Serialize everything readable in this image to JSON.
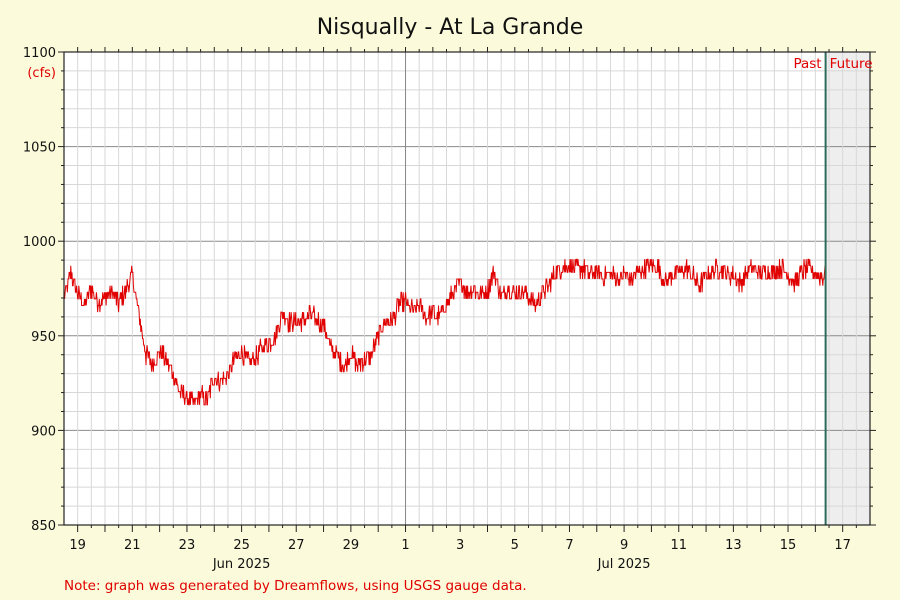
{
  "chart_data": {
    "type": "line",
    "title": "Nisqually - At La Grande",
    "ylabel": "(cfs)",
    "ylim": [
      850,
      1100
    ],
    "yticks": [
      850,
      900,
      950,
      1000,
      1050,
      1100
    ],
    "xlim": [
      "2025-06-18T12:00",
      "2025-07-18T00:00"
    ],
    "x_ticks": [
      {
        "date": "2025-06-19",
        "label": "19"
      },
      {
        "date": "2025-06-21",
        "label": "21"
      },
      {
        "date": "2025-06-23",
        "label": "23"
      },
      {
        "date": "2025-06-25",
        "label": "25"
      },
      {
        "date": "2025-06-27",
        "label": "27"
      },
      {
        "date": "2025-06-29",
        "label": "29"
      },
      {
        "date": "2025-07-01",
        "label": "1"
      },
      {
        "date": "2025-07-03",
        "label": "3"
      },
      {
        "date": "2025-07-05",
        "label": "5"
      },
      {
        "date": "2025-07-07",
        "label": "7"
      },
      {
        "date": "2025-07-09",
        "label": "9"
      },
      {
        "date": "2025-07-11",
        "label": "11"
      },
      {
        "date": "2025-07-13",
        "label": "13"
      },
      {
        "date": "2025-07-15",
        "label": "15"
      },
      {
        "date": "2025-07-17",
        "label": "17"
      }
    ],
    "month_labels": [
      {
        "date": "2025-06-25",
        "label": "Jun 2025"
      },
      {
        "date": "2025-07-09",
        "label": "Jul 2025"
      }
    ],
    "month_boundary": "2025-07-01",
    "now": "2025-07-16T09:00",
    "past_label": "Past",
    "future_label": "Future",
    "grid": true,
    "series": [
      {
        "color": "#e00000",
        "points": [
          [
            "2025-06-18T12:00",
            970
          ],
          [
            "2025-06-18T18:00",
            983
          ],
          [
            "2025-06-19T00:00",
            972
          ],
          [
            "2025-06-19T06:00",
            966
          ],
          [
            "2025-06-19T12:00",
            975
          ],
          [
            "2025-06-19T18:00",
            968
          ],
          [
            "2025-06-20T00:00",
            970
          ],
          [
            "2025-06-20T06:00",
            974
          ],
          [
            "2025-06-20T12:00",
            967
          ],
          [
            "2025-06-20T18:00",
            973
          ],
          [
            "2025-06-21T00:00",
            982
          ],
          [
            "2025-06-21T06:00",
            960
          ],
          [
            "2025-06-21T12:00",
            940
          ],
          [
            "2025-06-21T18:00",
            935
          ],
          [
            "2025-06-22T00:00",
            942
          ],
          [
            "2025-06-22T06:00",
            937
          ],
          [
            "2025-06-22T12:00",
            930
          ],
          [
            "2025-06-22T18:00",
            920
          ],
          [
            "2025-06-23T00:00",
            917
          ],
          [
            "2025-06-23T06:00",
            914
          ],
          [
            "2025-06-23T12:00",
            918
          ],
          [
            "2025-06-23T18:00",
            917
          ],
          [
            "2025-06-24T00:00",
            928
          ],
          [
            "2025-06-24T06:00",
            926
          ],
          [
            "2025-06-24T12:00",
            929
          ],
          [
            "2025-06-24T18:00",
            938
          ],
          [
            "2025-06-25T00:00",
            942
          ],
          [
            "2025-06-25T06:00",
            936
          ],
          [
            "2025-06-25T12:00",
            938
          ],
          [
            "2025-06-25T18:00",
            944
          ],
          [
            "2025-06-26T00:00",
            946
          ],
          [
            "2025-06-26T06:00",
            950
          ],
          [
            "2025-06-26T12:00",
            962
          ],
          [
            "2025-06-26T18:00",
            957
          ],
          [
            "2025-06-27T00:00",
            958
          ],
          [
            "2025-06-27T06:00",
            957
          ],
          [
            "2025-06-27T12:00",
            962
          ],
          [
            "2025-06-27T18:00",
            958
          ],
          [
            "2025-06-28T00:00",
            956
          ],
          [
            "2025-06-28T06:00",
            944
          ],
          [
            "2025-06-28T12:00",
            940
          ],
          [
            "2025-06-28T18:00",
            933
          ],
          [
            "2025-06-29T00:00",
            941
          ],
          [
            "2025-06-29T06:00",
            934
          ],
          [
            "2025-06-29T12:00",
            938
          ],
          [
            "2025-06-29T18:00",
            940
          ],
          [
            "2025-06-30T00:00",
            950
          ],
          [
            "2025-06-30T06:00",
            958
          ],
          [
            "2025-06-30T12:00",
            958
          ],
          [
            "2025-06-30T18:00",
            966
          ],
          [
            "2025-07-01T00:00",
            968
          ],
          [
            "2025-07-01T06:00",
            963
          ],
          [
            "2025-07-01T12:00",
            965
          ],
          [
            "2025-07-01T18:00",
            960
          ],
          [
            "2025-07-02T00:00",
            962
          ],
          [
            "2025-07-02T06:00",
            960
          ],
          [
            "2025-07-02T12:00",
            967
          ],
          [
            "2025-07-02T18:00",
            972
          ],
          [
            "2025-07-03T00:00",
            978
          ],
          [
            "2025-07-03T06:00",
            973
          ],
          [
            "2025-07-03T12:00",
            975
          ],
          [
            "2025-07-03T18:00",
            972
          ],
          [
            "2025-07-04T00:00",
            974
          ],
          [
            "2025-07-04T06:00",
            983
          ],
          [
            "2025-07-04T12:00",
            970
          ],
          [
            "2025-07-04T18:00",
            976
          ],
          [
            "2025-07-05T00:00",
            972
          ],
          [
            "2025-07-05T06:00",
            974
          ],
          [
            "2025-07-05T12:00",
            971
          ],
          [
            "2025-07-05T18:00",
            966
          ],
          [
            "2025-07-06T00:00",
            973
          ],
          [
            "2025-07-06T06:00",
            977
          ],
          [
            "2025-07-06T12:00",
            983
          ],
          [
            "2025-07-06T18:00",
            986
          ],
          [
            "2025-07-07T00:00",
            988
          ],
          [
            "2025-07-07T06:00",
            985
          ],
          [
            "2025-07-07T12:00",
            986
          ],
          [
            "2025-07-07T18:00",
            982
          ],
          [
            "2025-07-08T00:00",
            984
          ],
          [
            "2025-07-08T06:00",
            981
          ],
          [
            "2025-07-08T12:00",
            983
          ],
          [
            "2025-07-08T18:00",
            980
          ],
          [
            "2025-07-09T00:00",
            982
          ],
          [
            "2025-07-09T06:00",
            980
          ],
          [
            "2025-07-09T12:00",
            984
          ],
          [
            "2025-07-09T18:00",
            985
          ],
          [
            "2025-07-10T00:00",
            988
          ],
          [
            "2025-07-10T06:00",
            986
          ],
          [
            "2025-07-10T12:00",
            978
          ],
          [
            "2025-07-10T18:00",
            982
          ],
          [
            "2025-07-11T00:00",
            984
          ],
          [
            "2025-07-11T06:00",
            986
          ],
          [
            "2025-07-11T12:00",
            982
          ],
          [
            "2025-07-11T18:00",
            976
          ],
          [
            "2025-07-12T00:00",
            982
          ],
          [
            "2025-07-12T06:00",
            984
          ],
          [
            "2025-07-12T12:00",
            986
          ],
          [
            "2025-07-12T18:00",
            983
          ],
          [
            "2025-07-13T00:00",
            982
          ],
          [
            "2025-07-13T06:00",
            978
          ],
          [
            "2025-07-13T12:00",
            984
          ],
          [
            "2025-07-13T18:00",
            986
          ],
          [
            "2025-07-14T00:00",
            983
          ],
          [
            "2025-07-14T06:00",
            984
          ],
          [
            "2025-07-14T12:00",
            983
          ],
          [
            "2025-07-14T18:00",
            986
          ],
          [
            "2025-07-15T00:00",
            983
          ],
          [
            "2025-07-15T06:00",
            977
          ],
          [
            "2025-07-15T12:00",
            984
          ],
          [
            "2025-07-15T18:00",
            986
          ],
          [
            "2025-07-16T00:00",
            983
          ],
          [
            "2025-07-16T06:00",
            982
          ],
          [
            "2025-07-16T09:00",
            981
          ]
        ]
      }
    ]
  },
  "note": "Note: graph was generated by Dreamflows, using USGS gauge data.",
  "colors": {
    "background": "#fbfbdc",
    "plot": "#ffffff",
    "future": "#eeeeee",
    "grid_major": "#999999",
    "grid_minor": "#d8d8d8",
    "line": "#e00000",
    "now_line": "#2e6b5b",
    "red_text": "#e00000"
  }
}
